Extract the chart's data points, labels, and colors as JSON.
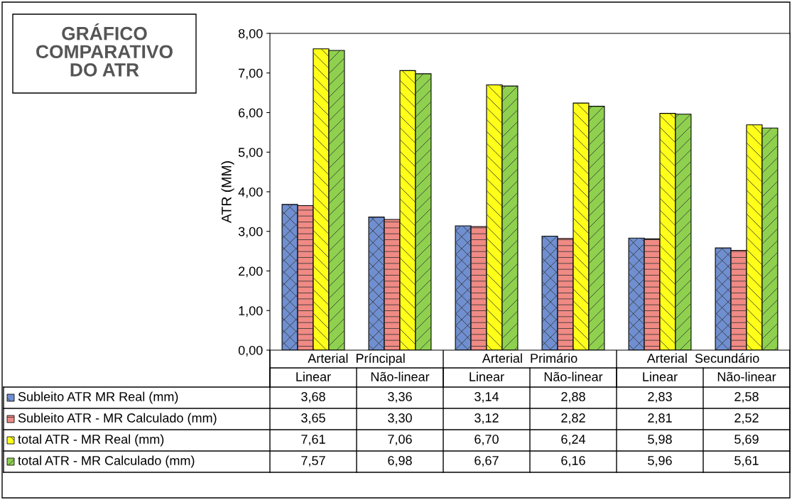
{
  "chart_data": {
    "type": "bar",
    "title": "GRÁFICO\nCOMPARATIVO\nDO ATR",
    "ylabel": "ATR (MM)",
    "categories": [
      "Linear",
      "Não-linear",
      "Linear",
      "Não-linear",
      "Linear",
      "Não-linear"
    ],
    "annotations": [
      "Arterial  Príncipal",
      "Arterial  Primário",
      "Arterial  Secundário"
    ],
    "series": [
      {
        "name": "Subleito ATR MR Real (mm)",
        "color": "#6f8fd0",
        "values": [
          3.68,
          3.36,
          3.14,
          2.88,
          2.83,
          2.58
        ],
        "value_labels": [
          "3,68",
          "3,36",
          "3,14",
          "2,88",
          "2,83",
          "2,58"
        ]
      },
      {
        "name": "Subleito ATR - MR Calculado (mm)",
        "color": "#f08a84",
        "values": [
          3.65,
          3.3,
          3.12,
          2.82,
          2.81,
          2.52
        ],
        "value_labels": [
          "3,65",
          "3,30",
          "3,12",
          "2,82",
          "2,81",
          "2,52"
        ]
      },
      {
        "name": "total ATR - MR Real (mm)",
        "color": "#ffff1a",
        "values": [
          7.61,
          7.06,
          6.7,
          6.24,
          5.98,
          5.69
        ],
        "value_labels": [
          "7,61",
          "7,06",
          "6,70",
          "6,24",
          "5,98",
          "5,69"
        ]
      },
      {
        "name": "total ATR - MR Calculado (mm)",
        "color": "#8fd14f",
        "values": [
          7.57,
          6.98,
          6.67,
          6.16,
          5.96,
          5.61
        ],
        "value_labels": [
          "7,57",
          "6,98",
          "6,67",
          "6,16",
          "5,96",
          "5,61"
        ]
      }
    ],
    "ylim": [
      0,
      8
    ],
    "yticks": [
      {
        "value": 0,
        "label": "0,00"
      },
      {
        "value": 1,
        "label": "1,00"
      },
      {
        "value": 2,
        "label": "2,00"
      },
      {
        "value": 3,
        "label": "3,00"
      },
      {
        "value": 4,
        "label": "4,00"
      },
      {
        "value": 5,
        "label": "5,00"
      },
      {
        "value": 6,
        "label": "6,00"
      },
      {
        "value": 7,
        "label": "7,00"
      },
      {
        "value": 8,
        "label": "8,00"
      }
    ],
    "legend": "bottom left",
    "grid": false
  }
}
